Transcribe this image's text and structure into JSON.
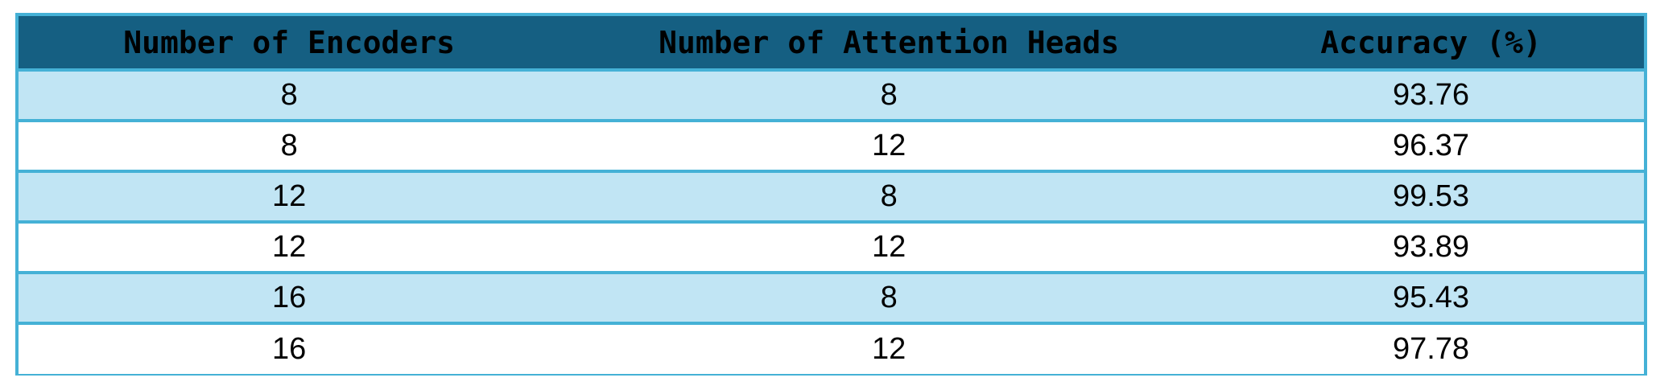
{
  "table": {
    "headers": [
      "Number of Encoders",
      "Number of Attention Heads",
      "Accuracy (%)"
    ],
    "rows": [
      [
        "8",
        "8",
        "93.76"
      ],
      [
        "8",
        "12",
        "96.37"
      ],
      [
        "12",
        "8",
        "99.53"
      ],
      [
        "12",
        "12",
        "93.89"
      ],
      [
        "16",
        "8",
        "95.43"
      ],
      [
        "16",
        "12",
        "97.78"
      ]
    ]
  },
  "colors": {
    "header_background": "#155f82",
    "border": "#45b1d6",
    "shaded_row": "#c1e5f4",
    "plain_row": "#ffffff"
  }
}
